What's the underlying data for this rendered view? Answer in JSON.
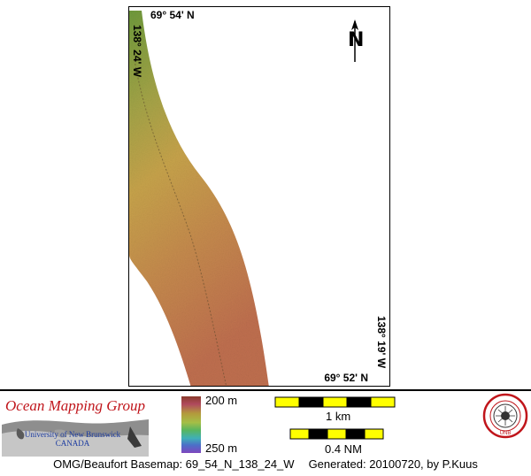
{
  "map": {
    "lat_top": "69° 54' N",
    "lat_bottom": "69° 52' N",
    "lon_left": "138° 24' W",
    "lon_right": "138° 19' W",
    "north_label": "N"
  },
  "legend": {
    "depth_min": "200 m",
    "depth_max": "250 m",
    "colors": [
      "#8a3b2c",
      "#b04a5e",
      "#b39a3c",
      "#a5be46",
      "#57b560",
      "#3fb0b7",
      "#4b70c8",
      "#7e47bf"
    ]
  },
  "scale": {
    "km_label": "1 km",
    "nm_label": "0.4 NM",
    "bar_colors": [
      "#ffff00",
      "#000000"
    ]
  },
  "branding": {
    "group_name": "Ocean Mapping Group",
    "university_line1": "University of New Brunswick",
    "university_line2": "CANADA",
    "seal_text": "UNB"
  },
  "footer": {
    "basemap": "OMG/Beaufort Basemap: 69_54_N_138_24_W",
    "generated": "Generated: 20100720, by P.Kuus"
  }
}
